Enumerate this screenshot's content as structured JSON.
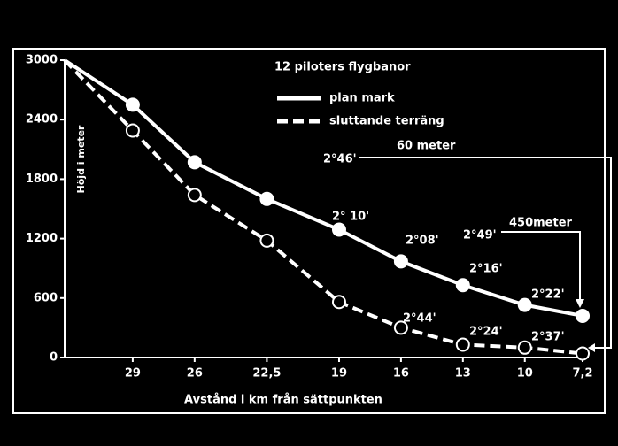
{
  "chart_data": {
    "type": "line",
    "title": "12 piloters flygbanor",
    "x_label": "Avstånd i km från sättpunkten",
    "y_label": "Höjd i meter",
    "x": [
      32.3,
      29,
      26,
      22.5,
      19,
      16,
      13,
      10,
      7.2
    ],
    "series": [
      {
        "name": "plan mark",
        "color": "#ffffff",
        "style": "solid",
        "values": [
          3000,
          2550,
          1970,
          1600,
          1290,
          970,
          730,
          530,
          420
        ]
      },
      {
        "name": "sluttande terräng",
        "color": "#ffffff",
        "style": "dashed",
        "values": [
          3000,
          2290,
          1640,
          1180,
          560,
          300,
          130,
          100,
          40
        ]
      }
    ],
    "xlim": [
      32.3,
      6.9
    ],
    "xticks": [
      29,
      26,
      {
        "value": 22.5,
        "label": "22,5"
      },
      19,
      16,
      13,
      10,
      {
        "value": 7.2,
        "label": "7,2"
      }
    ],
    "ylim": [
      0,
      3000
    ],
    "yticks": [
      0,
      600,
      1200,
      1800,
      2400,
      3000
    ],
    "annotations": [
      "2°46'",
      "60 meter",
      "2° 10'",
      "2°08'",
      "2°16'",
      "2°22'",
      "2°49'",
      "450meter",
      "2°44'",
      "2°24'",
      "2°37'"
    ]
  }
}
